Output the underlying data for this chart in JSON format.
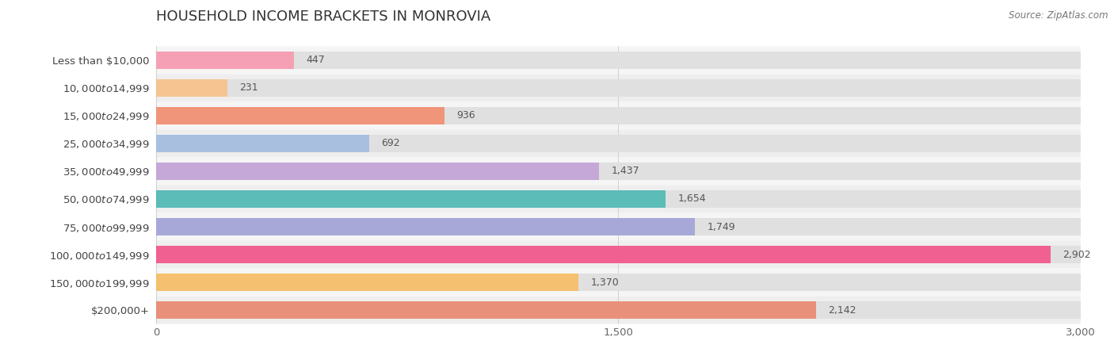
{
  "title": "HOUSEHOLD INCOME BRACKETS IN MONROVIA",
  "source": "Source: ZipAtlas.com",
  "categories": [
    "Less than $10,000",
    "$10,000 to $14,999",
    "$15,000 to $24,999",
    "$25,000 to $34,999",
    "$35,000 to $49,999",
    "$50,000 to $74,999",
    "$75,000 to $99,999",
    "$100,000 to $149,999",
    "$150,000 to $199,999",
    "$200,000+"
  ],
  "values": [
    447,
    231,
    936,
    692,
    1437,
    1654,
    1749,
    2902,
    1370,
    2142
  ],
  "bar_colors": [
    "#f5a0b5",
    "#f5c490",
    "#f0957a",
    "#a8bfdf",
    "#c5a8d8",
    "#5bbcb8",
    "#a8a8d8",
    "#f06090",
    "#f5c070",
    "#e8907a"
  ],
  "row_colors": [
    "#f5f5f5",
    "#eeeeee"
  ],
  "bar_bg_color": "#e0e0e0",
  "xlim": [
    0,
    3000
  ],
  "xticks": [
    0,
    1500,
    3000
  ],
  "title_fontsize": 13,
  "label_fontsize": 9.5,
  "value_fontsize": 9,
  "source_fontsize": 8.5
}
